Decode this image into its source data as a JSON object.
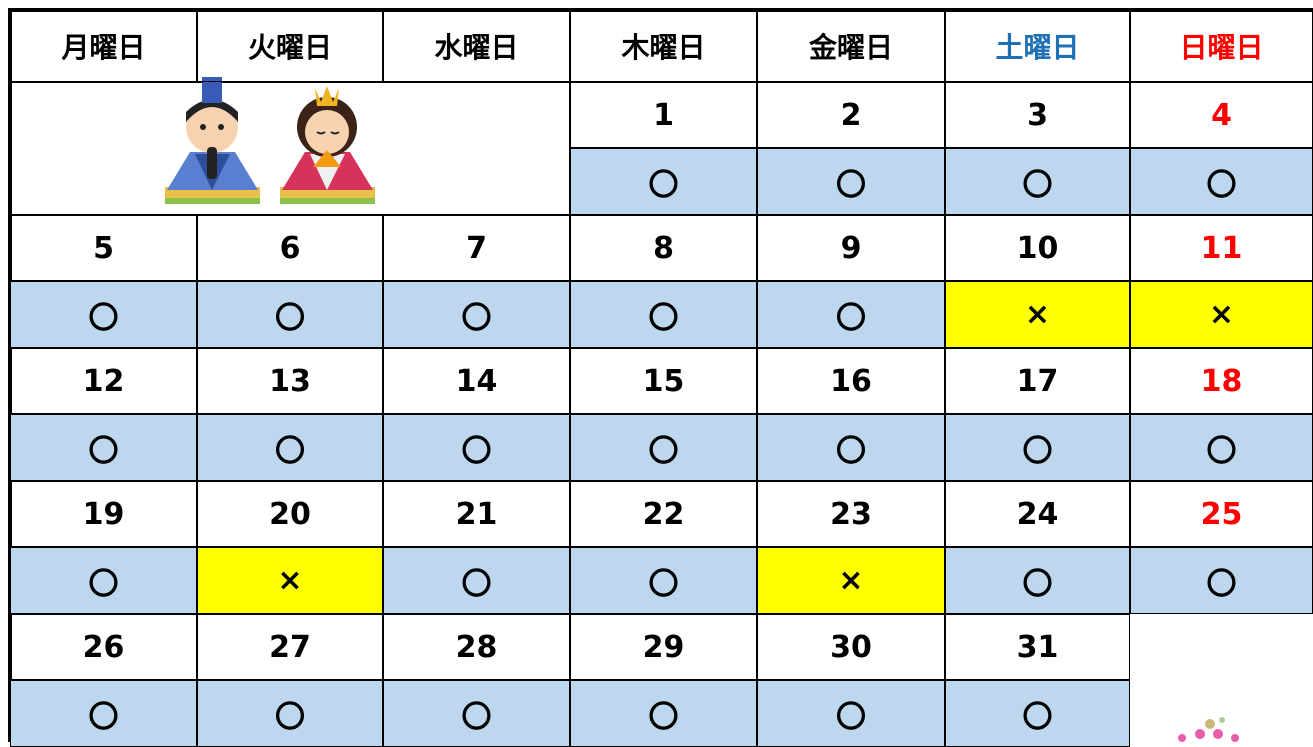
{
  "calendar": {
    "days": [
      {
        "label": "月曜日",
        "color": "#000000",
        "date_color": "#000000"
      },
      {
        "label": "火曜日",
        "color": "#000000",
        "date_color": "#000000"
      },
      {
        "label": "水曜日",
        "color": "#000000",
        "date_color": "#000000"
      },
      {
        "label": "木曜日",
        "color": "#000000",
        "date_color": "#000000"
      },
      {
        "label": "金曜日",
        "color": "#000000",
        "date_color": "#000000"
      },
      {
        "label": "土曜日",
        "color": "#1f6fb5",
        "date_color": "#000000"
      },
      {
        "label": "日曜日",
        "color": "#ff0000",
        "date_color": "#ff0000"
      }
    ],
    "weeks": [
      [
        null,
        null,
        null,
        {
          "date": "1",
          "status": "〇",
          "background": "#bdd7ee"
        },
        {
          "date": "2",
          "status": "〇",
          "background": "#bdd7ee"
        },
        {
          "date": "3",
          "status": "〇",
          "background": "#bdd7ee"
        },
        {
          "date": "4",
          "status": "〇",
          "background": "#bdd7ee"
        }
      ],
      [
        {
          "date": "5",
          "status": "〇",
          "background": "#bdd7ee"
        },
        {
          "date": "6",
          "status": "〇",
          "background": "#bdd7ee"
        },
        {
          "date": "7",
          "status": "〇",
          "background": "#bdd7ee"
        },
        {
          "date": "8",
          "status": "〇",
          "background": "#bdd7ee"
        },
        {
          "date": "9",
          "status": "〇",
          "background": "#bdd7ee"
        },
        {
          "date": "10",
          "status": "×",
          "background": "#ffff00"
        },
        {
          "date": "11",
          "status": "×",
          "background": "#ffff00"
        }
      ],
      [
        {
          "date": "12",
          "status": "〇",
          "background": "#bdd7ee"
        },
        {
          "date": "13",
          "status": "〇",
          "background": "#bdd7ee"
        },
        {
          "date": "14",
          "status": "〇",
          "background": "#bdd7ee"
        },
        {
          "date": "15",
          "status": "〇",
          "background": "#bdd7ee"
        },
        {
          "date": "16",
          "status": "〇",
          "background": "#bdd7ee"
        },
        {
          "date": "17",
          "status": "〇",
          "background": "#bdd7ee"
        },
        {
          "date": "18",
          "status": "〇",
          "background": "#bdd7ee"
        }
      ],
      [
        {
          "date": "19",
          "status": "〇",
          "background": "#bdd7ee"
        },
        {
          "date": "20",
          "status": "×",
          "background": "#ffff00"
        },
        {
          "date": "21",
          "status": "〇",
          "background": "#bdd7ee"
        },
        {
          "date": "22",
          "status": "〇",
          "background": "#bdd7ee"
        },
        {
          "date": "23",
          "status": "×",
          "background": "#ffff00"
        },
        {
          "date": "24",
          "status": "〇",
          "background": "#bdd7ee"
        },
        {
          "date": "25",
          "status": "〇",
          "background": "#bdd7ee"
        }
      ],
      [
        {
          "date": "26",
          "status": "〇",
          "background": "#bdd7ee"
        },
        {
          "date": "27",
          "status": "〇",
          "background": "#bdd7ee"
        },
        {
          "date": "28",
          "status": "〇",
          "background": "#bdd7ee"
        },
        {
          "date": "29",
          "status": "〇",
          "background": "#bdd7ee"
        },
        {
          "date": "30",
          "status": "〇",
          "background": "#bdd7ee"
        },
        {
          "date": "31",
          "status": "〇",
          "background": "#bdd7ee"
        },
        null
      ]
    ]
  }
}
